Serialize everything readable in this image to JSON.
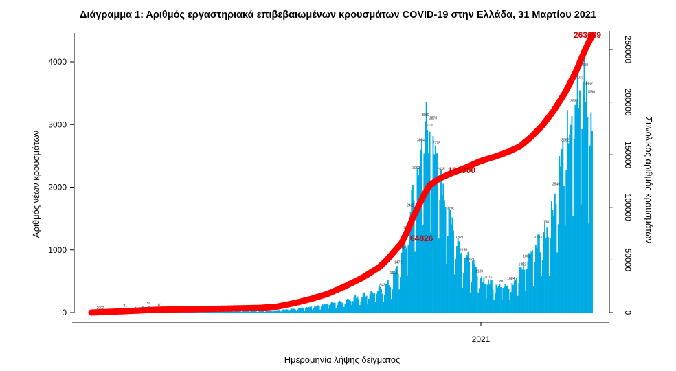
{
  "chart_data": {
    "type": "bar",
    "title": "Διάγραμμα 1: Αριθμός εργαστηριακά επιβεβαιωμένων κρουσμάτων COVID-19 στην Ελλάδα, 31 Μαρτίου 2021",
    "xlabel": "Ημερομηνία λήψης δείγματος",
    "ylabel": "Αριθμός νέων κρουσμάτων",
    "y2label": "Συνολικός αριθμός κρουσμάτων",
    "ylim": [
      0,
      4500
    ],
    "y2lim": [
      0,
      270000
    ],
    "yticks": [
      "0",
      "1000",
      "2000",
      "3000",
      "4000"
    ],
    "y2ticks": [
      "0",
      "50000",
      "100000",
      "150000",
      "200000",
      "250000"
    ],
    "xtick": "2021",
    "grid": false,
    "bar_color": "#00aae4",
    "line_color": "#ff0000",
    "daily_cases_key_points": [
      [
        0,
        0
      ],
      [
        8,
        20
      ],
      [
        20,
        45
      ],
      [
        30,
        60
      ],
      [
        40,
        85
      ],
      [
        50,
        100
      ],
      [
        60,
        70
      ],
      [
        80,
        55
      ],
      [
        100,
        40
      ],
      [
        120,
        30
      ],
      [
        140,
        25
      ],
      [
        160,
        30
      ],
      [
        170,
        45
      ],
      [
        180,
        60
      ],
      [
        190,
        80
      ],
      [
        200,
        110
      ],
      [
        210,
        150
      ],
      [
        220,
        170
      ],
      [
        230,
        240
      ],
      [
        240,
        280
      ],
      [
        250,
        330
      ],
      [
        258,
        390
      ],
      [
        265,
        480
      ],
      [
        270,
        650
      ],
      [
        275,
        900
      ],
      [
        280,
        1300
      ],
      [
        285,
        1900
      ],
      [
        290,
        2500
      ],
      [
        293,
        2800
      ],
      [
        296,
        3100
      ],
      [
        299,
        2900
      ],
      [
        303,
        3050
      ],
      [
        308,
        2400
      ],
      [
        313,
        2000
      ],
      [
        318,
        1600
      ],
      [
        323,
        1300
      ],
      [
        330,
        950
      ],
      [
        338,
        750
      ],
      [
        346,
        560
      ],
      [
        354,
        500
      ],
      [
        362,
        450
      ],
      [
        368,
        480
      ],
      [
        374,
        500
      ],
      [
        380,
        650
      ],
      [
        386,
        850
      ],
      [
        392,
        1050
      ],
      [
        398,
        1200
      ],
      [
        404,
        1400
      ],
      [
        410,
        1800
      ],
      [
        415,
        2300
      ],
      [
        420,
        2700
      ],
      [
        425,
        3100
      ],
      [
        429,
        3400
      ],
      [
        433,
        3700
      ],
      [
        437,
        3900
      ],
      [
        441,
        3600
      ],
      [
        444,
        3400
      ]
    ],
    "cumulative_key_points": [
      [
        0,
        0
      ],
      [
        30,
        1300
      ],
      [
        60,
        2800
      ],
      [
        90,
        3200
      ],
      [
        120,
        3800
      ],
      [
        150,
        4500
      ],
      [
        165,
        5700
      ],
      [
        180,
        9000
      ],
      [
        195,
        13000
      ],
      [
        210,
        18000
      ],
      [
        225,
        25000
      ],
      [
        240,
        33000
      ],
      [
        255,
        43000
      ],
      [
        262,
        50000
      ],
      [
        270,
        60000
      ],
      [
        275,
        66000
      ],
      [
        280,
        77000
      ],
      [
        285,
        90000
      ],
      [
        290,
        101000
      ],
      [
        295,
        112000
      ],
      [
        300,
        121000
      ],
      [
        308,
        127000
      ],
      [
        318,
        131900
      ],
      [
        330,
        137000
      ],
      [
        345,
        144000
      ],
      [
        360,
        149000
      ],
      [
        370,
        153000
      ],
      [
        380,
        158000
      ],
      [
        390,
        167000
      ],
      [
        400,
        178000
      ],
      [
        410,
        192000
      ],
      [
        420,
        209000
      ],
      [
        430,
        230000
      ],
      [
        437,
        248000
      ],
      [
        441,
        257000
      ],
      [
        444,
        263689
      ]
    ],
    "bar_labels": [
      "2002",
      "81",
      "159",
      "161",
      "642",
      "1125",
      "1472",
      "1828",
      "2262",
      "2425",
      "3062",
      "3604",
      "3560",
      "3316",
      "2875",
      "2775",
      "2435",
      "1525",
      "1269",
      "1155",
      "1169",
      "1109",
      "1076",
      "1381",
      "1684",
      "1352",
      "2233",
      "2949",
      "3062",
      "3930",
      "4033",
      "3659",
      "3862",
      "1080",
      "1381",
      "1002"
    ],
    "annotations": [
      "64826",
      "131900",
      "263689"
    ]
  }
}
